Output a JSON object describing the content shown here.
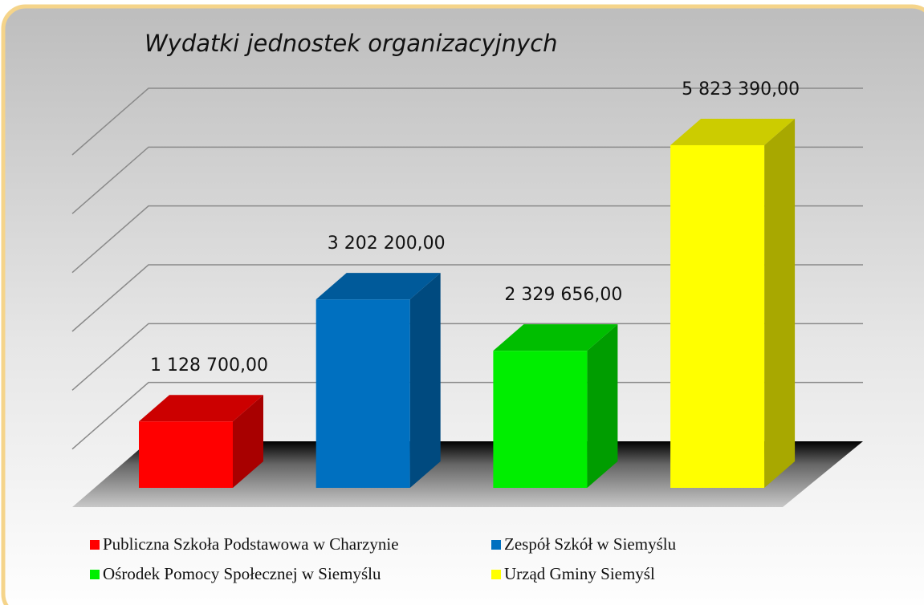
{
  "chart_data": {
    "type": "bar3d",
    "title": "Wydatki jednostek organizacyjnych",
    "categories": [
      "Publiczna Szkoła Podstawowa w Charzynie",
      "Zespół Szkół w Siemyślu",
      "Ośrodek Pomocy Społecznej w Siemyślu",
      "Urząd Gminy Siemyśl"
    ],
    "values": [
      1128700,
      3202200,
      2329656,
      5823390
    ],
    "value_labels": [
      "1 128 700,00",
      "3 202 200,00",
      "2 329 656,00",
      "5 823 390,00"
    ],
    "colors": [
      "#ff0000",
      "#0070c0",
      "#00ee00",
      "#ffff00"
    ],
    "ylim": [
      0,
      6000000
    ],
    "yticks": [
      0,
      1000000,
      2000000,
      3000000,
      4000000,
      5000000,
      6000000
    ],
    "grid": true,
    "legend": "bottom"
  }
}
